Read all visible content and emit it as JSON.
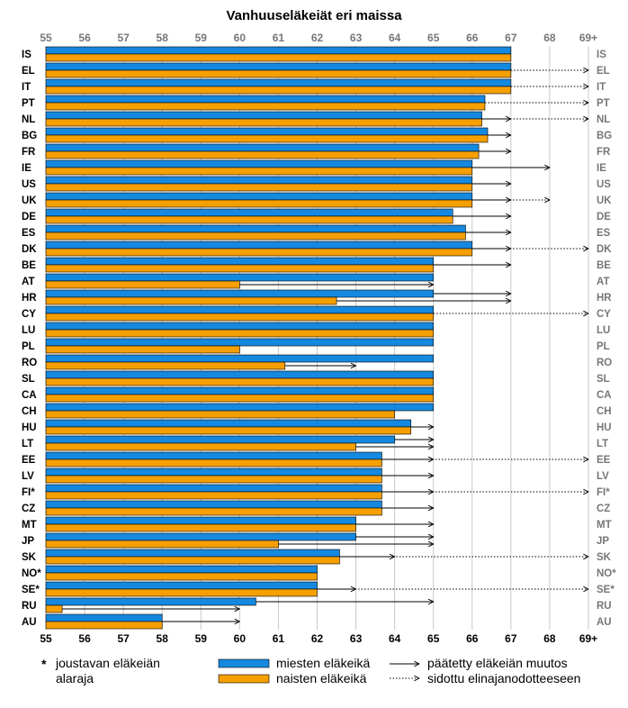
{
  "chart_data": {
    "type": "bar",
    "orientation": "horizontal",
    "title": "Vanhuuseläkeiät eri maissa",
    "x_ticks": [
      "55",
      "56",
      "57",
      "58",
      "59",
      "60",
      "61",
      "62",
      "63",
      "64",
      "65",
      "66",
      "67",
      "68",
      "69+"
    ],
    "xlim": [
      55,
      69
    ],
    "grid": true,
    "colors": {
      "men": "#1589e0",
      "women": "#f59f00"
    },
    "series": [
      {
        "name": "miesten eläkeikä",
        "key": "men"
      },
      {
        "name": "naisten eläkeikä",
        "key": "women"
      }
    ],
    "categories": [
      "IS",
      "EL",
      "IT",
      "PT",
      "NL",
      "BG",
      "FR",
      "IE",
      "US",
      "UK",
      "DE",
      "ES",
      "DK",
      "BE",
      "AT",
      "HR",
      "CY",
      "LU",
      "PL",
      "RO",
      "SL",
      "CA",
      "CH",
      "HU",
      "LT",
      "EE",
      "LV",
      "FI*",
      "CZ",
      "MT",
      "JP",
      "SK",
      "NO*",
      "SE*",
      "RU",
      "AU"
    ],
    "rows": [
      {
        "c": "IS",
        "men": 67,
        "women": 67,
        "arrows": []
      },
      {
        "c": "EL",
        "men": 67,
        "women": 67,
        "arrows": [
          {
            "to": 69,
            "style": "dotted",
            "bar": "both"
          }
        ]
      },
      {
        "c": "IT",
        "men": 67,
        "women": 67,
        "arrows": [
          {
            "to": 69,
            "style": "dotted",
            "bar": "both"
          }
        ]
      },
      {
        "c": "PT",
        "men": 66.33,
        "women": 66.33,
        "arrows": [
          {
            "to": 69,
            "style": "dotted",
            "bar": "both"
          }
        ]
      },
      {
        "c": "NL",
        "men": 66.25,
        "women": 66.25,
        "arrows": [
          {
            "to": 67,
            "style": "solid",
            "bar": "both"
          },
          {
            "to": 69,
            "style": "dotted",
            "bar": "both"
          }
        ]
      },
      {
        "c": "BG",
        "men": 66.4,
        "women": 66.4,
        "arrows": [
          {
            "to": 67,
            "style": "solid",
            "bar": "both"
          }
        ]
      },
      {
        "c": "FR",
        "men": 66.17,
        "women": 66.17,
        "arrows": [
          {
            "to": 67,
            "style": "solid",
            "bar": "both"
          }
        ]
      },
      {
        "c": "IE",
        "men": 66,
        "women": 66,
        "arrows": [
          {
            "to": 68,
            "style": "solid",
            "bar": "both"
          }
        ]
      },
      {
        "c": "US",
        "men": 66,
        "women": 66,
        "arrows": [
          {
            "to": 67,
            "style": "solid",
            "bar": "both"
          }
        ]
      },
      {
        "c": "UK",
        "men": 66,
        "women": 66,
        "arrows": [
          {
            "to": 67,
            "style": "solid",
            "bar": "both"
          },
          {
            "to": 68,
            "style": "dotted",
            "bar": "both"
          }
        ]
      },
      {
        "c": "DE",
        "men": 65.5,
        "women": 65.5,
        "arrows": [
          {
            "to": 67,
            "style": "solid",
            "bar": "both"
          }
        ]
      },
      {
        "c": "ES",
        "men": 65.83,
        "women": 65.83,
        "arrows": [
          {
            "to": 67,
            "style": "solid",
            "bar": "both"
          }
        ]
      },
      {
        "c": "DK",
        "men": 66,
        "women": 66,
        "arrows": [
          {
            "to": 67,
            "style": "solid",
            "bar": "both"
          },
          {
            "to": 69,
            "style": "dotted",
            "bar": "both"
          }
        ]
      },
      {
        "c": "BE",
        "men": 65,
        "women": 65,
        "arrows": [
          {
            "to": 67,
            "style": "solid",
            "bar": "both"
          }
        ]
      },
      {
        "c": "AT",
        "men": 65,
        "women": 60,
        "arrows": [
          {
            "to": 65,
            "style": "solid",
            "bar": "women"
          }
        ]
      },
      {
        "c": "HR",
        "men": 65,
        "women": 62.5,
        "arrows": [
          {
            "to": 67,
            "style": "solid",
            "bar": "men"
          },
          {
            "to": 67,
            "style": "solid",
            "bar": "women"
          }
        ]
      },
      {
        "c": "CY",
        "men": 65,
        "women": 65,
        "arrows": [
          {
            "to": 69,
            "style": "dotted",
            "bar": "both"
          }
        ]
      },
      {
        "c": "LU",
        "men": 65,
        "women": 65,
        "arrows": []
      },
      {
        "c": "PL",
        "men": 65,
        "women": 60,
        "arrows": []
      },
      {
        "c": "RO",
        "men": 65,
        "women": 61.17,
        "arrows": [
          {
            "to": 63,
            "style": "solid",
            "bar": "women"
          }
        ]
      },
      {
        "c": "SL",
        "men": 65,
        "women": 65,
        "arrows": []
      },
      {
        "c": "CA",
        "men": 65,
        "women": 65,
        "arrows": []
      },
      {
        "c": "CH",
        "men": 65,
        "women": 64,
        "arrows": []
      },
      {
        "c": "HU",
        "men": 64.42,
        "women": 64.42,
        "arrows": [
          {
            "to": 65,
            "style": "solid",
            "bar": "both"
          }
        ]
      },
      {
        "c": "LT",
        "men": 64,
        "women": 63,
        "arrows": [
          {
            "to": 65,
            "style": "solid",
            "bar": "men"
          },
          {
            "to": 65,
            "style": "solid",
            "bar": "women"
          }
        ]
      },
      {
        "c": "EE",
        "men": 63.67,
        "women": 63.67,
        "arrows": [
          {
            "to": 65,
            "style": "solid",
            "bar": "both"
          },
          {
            "to": 69,
            "style": "dotted",
            "bar": "both"
          }
        ]
      },
      {
        "c": "LV",
        "men": 63.67,
        "women": 63.67,
        "arrows": [
          {
            "to": 65,
            "style": "solid",
            "bar": "both"
          }
        ]
      },
      {
        "c": "FI*",
        "men": 63.67,
        "women": 63.67,
        "arrows": [
          {
            "to": 65,
            "style": "solid",
            "bar": "both"
          },
          {
            "to": 69,
            "style": "dotted",
            "bar": "both"
          }
        ]
      },
      {
        "c": "CZ",
        "men": 63.67,
        "women": 63.67,
        "arrows": [
          {
            "to": 65,
            "style": "solid",
            "bar": "both"
          }
        ]
      },
      {
        "c": "MT",
        "men": 63,
        "women": 63,
        "arrows": [
          {
            "to": 65,
            "style": "solid",
            "bar": "both"
          }
        ]
      },
      {
        "c": "JP",
        "men": 63,
        "women": 61,
        "arrows": [
          {
            "to": 65,
            "style": "solid",
            "bar": "men"
          },
          {
            "to": 65,
            "style": "solid",
            "bar": "women"
          }
        ]
      },
      {
        "c": "SK",
        "men": 62.58,
        "women": 62.58,
        "arrows": [
          {
            "to": 64,
            "style": "solid",
            "bar": "both"
          },
          {
            "to": 69,
            "style": "dotted",
            "bar": "both"
          }
        ]
      },
      {
        "c": "NO*",
        "men": 62,
        "women": 62,
        "arrows": []
      },
      {
        "c": "SE*",
        "men": 62,
        "women": 62,
        "arrows": [
          {
            "to": 63,
            "style": "solid",
            "bar": "both"
          },
          {
            "to": 69,
            "style": "dotted",
            "bar": "both"
          }
        ]
      },
      {
        "c": "RU",
        "men": 60.42,
        "women": 55.42,
        "arrows": [
          {
            "to": 65,
            "style": "solid",
            "bar": "men"
          },
          {
            "to": 60,
            "style": "solid",
            "bar": "women"
          }
        ]
      },
      {
        "c": "AU",
        "men": 58,
        "women": 58,
        "arrows": [
          {
            "to": 60,
            "style": "solid",
            "bar": "both"
          }
        ]
      }
    ]
  },
  "legend": {
    "asterisk_symbol": "*",
    "asterisk_line1": "joustavan eläkeiän",
    "asterisk_line2": "alaraja",
    "men_label": "miesten eläkeikä",
    "women_label": "naisten eläkeikä",
    "solid_label": "päätetty eläkeiän muutos",
    "dotted_label": "sidottu elinajanodotteeseen"
  }
}
